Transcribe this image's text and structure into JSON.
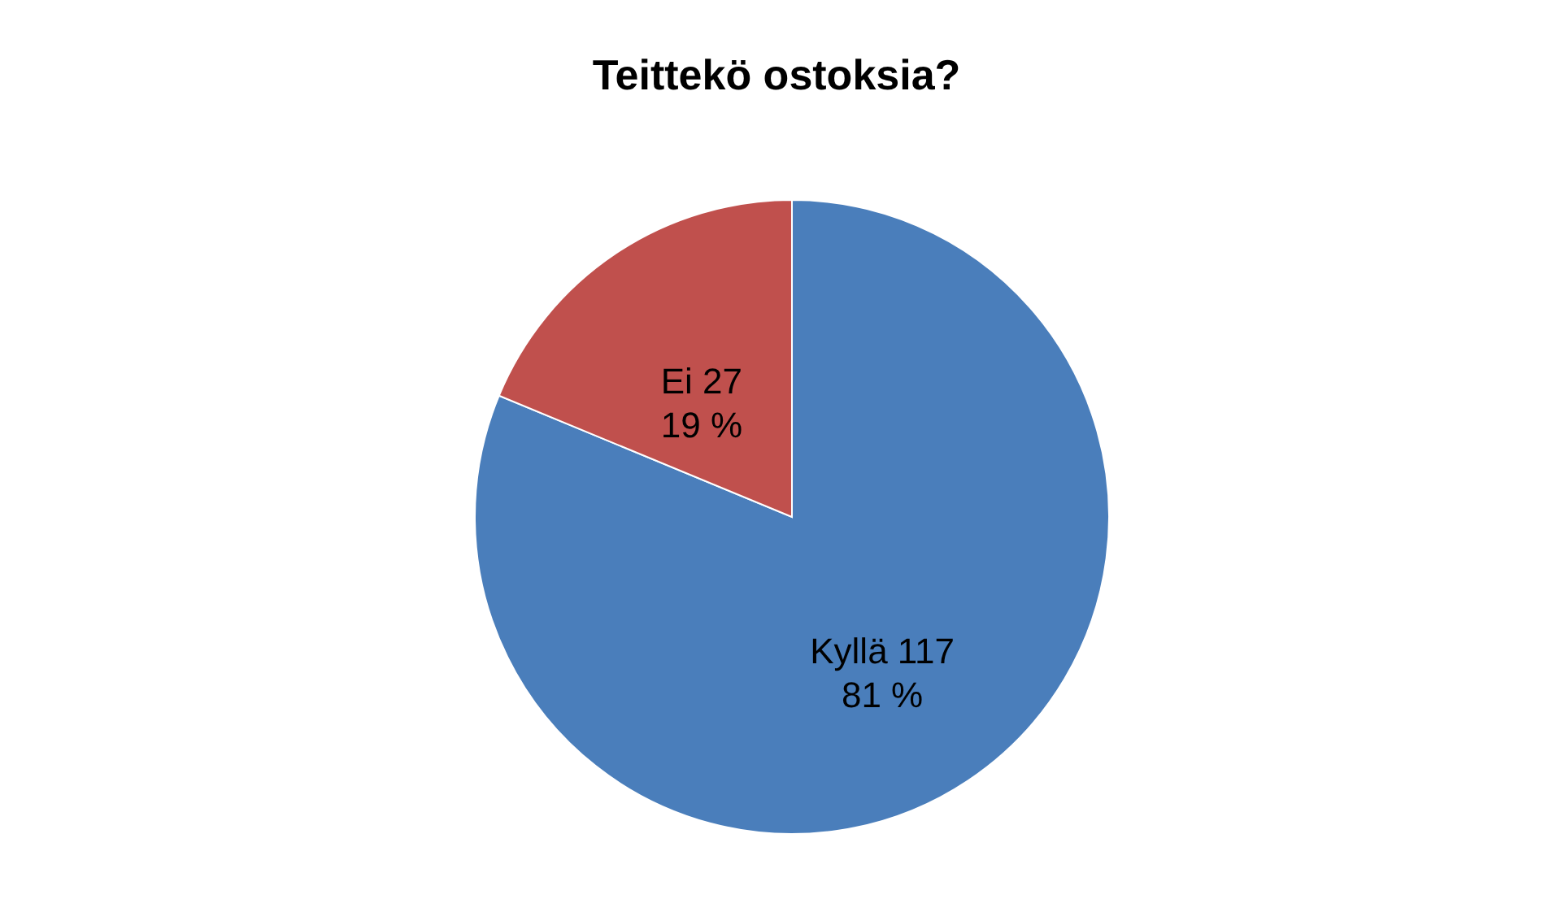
{
  "chart_data": {
    "type": "pie",
    "title": "Teittekö ostoksia?",
    "categories": [
      "Kyllä",
      "Ei"
    ],
    "values": [
      117,
      27
    ],
    "value_labels": [
      "117\n81 %",
      "27\n19 %"
    ],
    "colors": [
      "#4a7ebb",
      "#c0504d"
    ],
    "legend": false
  }
}
